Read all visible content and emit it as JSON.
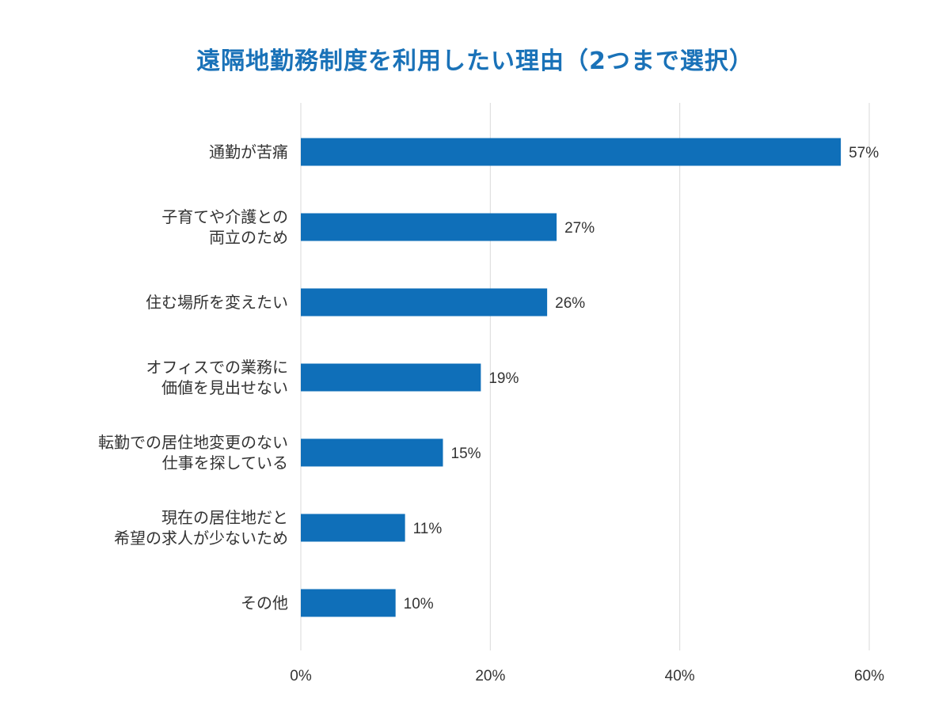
{
  "chart_data": {
    "type": "bar",
    "orientation": "horizontal",
    "title": "遠隔地勤務制度を利用したい理由（2つまで選択）",
    "categories": [
      [
        "通勤が苦痛"
      ],
      [
        "子育てや介護との",
        "両立のため"
      ],
      [
        "住む場所を変えたい"
      ],
      [
        "オフィスでの業務に",
        "価値を見出せない"
      ],
      [
        "転勤での居住地変更のない",
        "仕事を探している"
      ],
      [
        "現在の居住地だと",
        "希望の求人が少ないため"
      ],
      [
        "その他"
      ]
    ],
    "values": [
      57,
      27,
      26,
      19,
      15,
      11,
      10
    ],
    "value_labels": [
      "57%",
      "27%",
      "26%",
      "19%",
      "15%",
      "11%",
      "10%"
    ],
    "xlim": [
      0,
      60
    ],
    "x_ticks": [
      0,
      20,
      40,
      60
    ],
    "x_tick_labels": [
      "0%",
      "20%",
      "40%",
      "60%"
    ],
    "grid": true,
    "bar_color": "#0f6fb9",
    "grid_color": "#d9d9d9",
    "title_color": "#1a72b8"
  }
}
